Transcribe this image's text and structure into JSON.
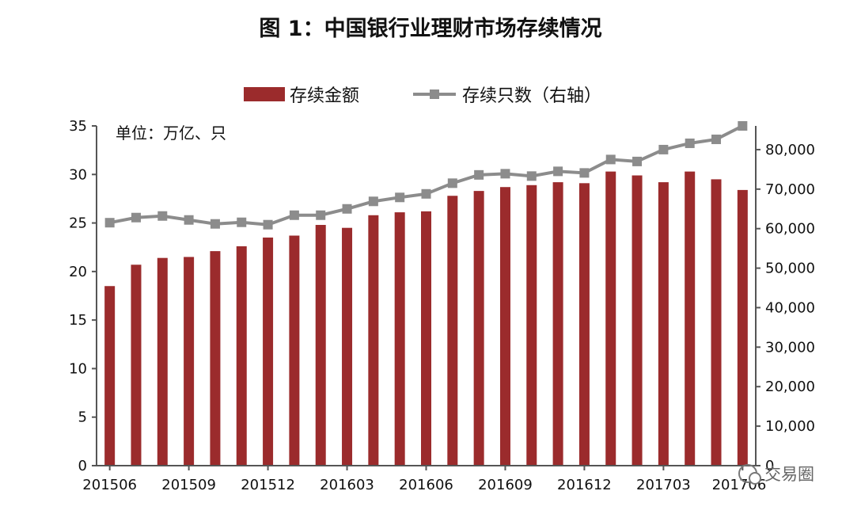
{
  "title": "图 1：中国银行业理财市场存续情况",
  "unit_note": "单位：万亿、只",
  "watermark": "交易圈",
  "chart_data": {
    "type": "bar",
    "categories": [
      "201506",
      "201507",
      "201508",
      "201509",
      "201510",
      "201511",
      "201512",
      "201601",
      "201602",
      "201603",
      "201604",
      "201605",
      "201606",
      "201607",
      "201608",
      "201609",
      "201610",
      "201611",
      "201612",
      "201701",
      "201702",
      "201703",
      "201704",
      "201705",
      "201706"
    ],
    "x_tick_labels": [
      "201506",
      "201509",
      "201512",
      "201603",
      "201606",
      "201609",
      "201612",
      "201703",
      "201706"
    ],
    "series": [
      {
        "name": "存续金额",
        "type": "bar",
        "axis": "left",
        "color": "#9B2B2C",
        "values": [
          18.5,
          20.7,
          21.4,
          21.5,
          22.1,
          22.6,
          23.5,
          23.7,
          24.8,
          24.5,
          25.8,
          26.1,
          26.2,
          27.8,
          28.3,
          28.7,
          28.9,
          29.2,
          29.1,
          30.3,
          29.9,
          29.2,
          30.3,
          29.5,
          28.4
        ]
      },
      {
        "name": "存续只数（右轴）",
        "type": "line",
        "axis": "right",
        "color": "#8C8C8C",
        "values": [
          61500,
          62800,
          63200,
          62200,
          61200,
          61600,
          61000,
          63400,
          63400,
          65000,
          66900,
          67900,
          68800,
          71500,
          73600,
          73900,
          73300,
          74500,
          74100,
          77500,
          77000,
          80000,
          81600,
          82600,
          86000
        ]
      }
    ],
    "y_left": {
      "min": 0,
      "max": 35,
      "ticks": [
        "0",
        "5",
        "10",
        "15",
        "20",
        "25",
        "30",
        "35"
      ]
    },
    "y_right": {
      "min": 0,
      "max": 86000,
      "ticks": [
        "0",
        "10,000",
        "20,000",
        "30,000",
        "40,000",
        "50,000",
        "60,000",
        "70,000",
        "80,000"
      ]
    },
    "legend": "top-center",
    "grid": false
  }
}
